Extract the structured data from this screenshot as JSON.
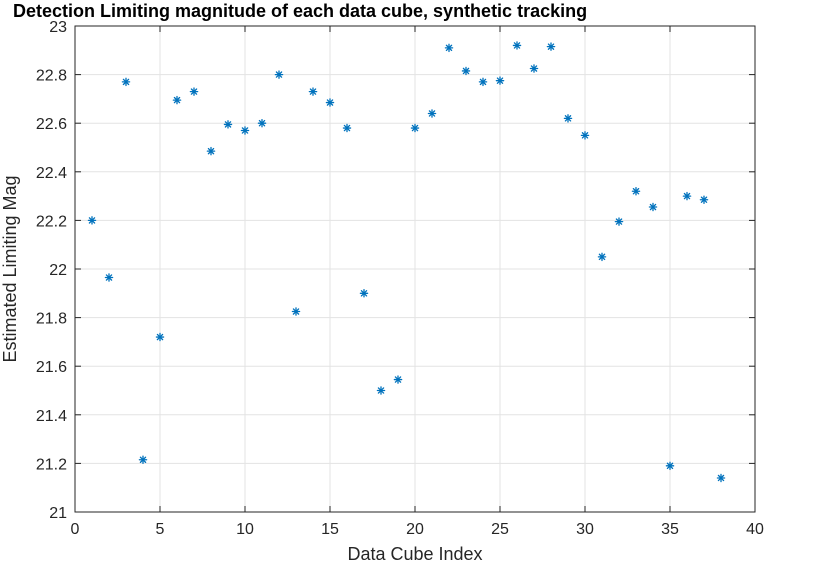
{
  "chart_data": {
    "type": "scatter",
    "title": "Detection Limiting magnitude of each data cube, synthetic tracking",
    "xlabel": "Data Cube Index",
    "ylabel": "Estimated Limiting Mag",
    "xlim": [
      0,
      40
    ],
    "ylim": [
      21,
      23
    ],
    "xticks": [
      "0",
      "5",
      "10",
      "15",
      "20",
      "25",
      "30",
      "35",
      "40"
    ],
    "yticks": [
      "21",
      "21.2",
      "21.4",
      "21.6",
      "21.8",
      "22",
      "22.2",
      "22.4",
      "22.6",
      "22.8",
      "23"
    ],
    "grid": true,
    "marker": "asterisk",
    "color": "#0072BD",
    "x": [
      1,
      2,
      3,
      4,
      5,
      6,
      7,
      8,
      9,
      10,
      11,
      12,
      13,
      14,
      15,
      16,
      17,
      18,
      19,
      20,
      21,
      22,
      23,
      24,
      25,
      26,
      27,
      28,
      29,
      30,
      31,
      32,
      33,
      34,
      35,
      36,
      37,
      38
    ],
    "y": [
      22.2,
      21.965,
      22.77,
      21.215,
      21.72,
      22.695,
      22.73,
      22.485,
      22.595,
      22.57,
      22.6,
      22.8,
      21.825,
      22.73,
      22.685,
      22.58,
      21.9,
      21.5,
      21.545,
      22.58,
      22.64,
      22.91,
      22.815,
      22.77,
      22.775,
      22.92,
      22.825,
      22.915,
      22.62,
      22.55,
      22.05,
      22.195,
      22.32,
      22.255,
      21.19,
      22.3,
      22.285,
      21.14
    ]
  }
}
